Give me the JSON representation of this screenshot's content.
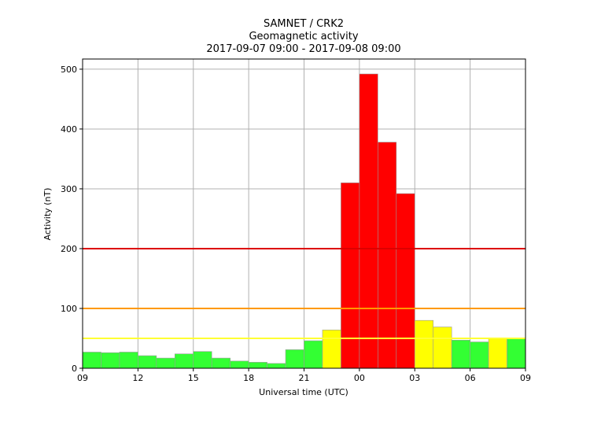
{
  "chart_data": {
    "type": "bar",
    "title": [
      "SAMNET / CRK2",
      "Geomagnetic activity",
      "2017-09-07 09:00 - 2017-09-08 09:00"
    ],
    "xlabel": "Universal time (UTC)",
    "ylabel": "Activity (nT)",
    "xlim": [
      0,
      24
    ],
    "ylim": [
      0,
      517
    ],
    "x_ticks": [
      0,
      3,
      6,
      9,
      12,
      15,
      18,
      21,
      24
    ],
    "x_tick_labels": [
      "09",
      "12",
      "15",
      "18",
      "21",
      "00",
      "03",
      "06",
      "09"
    ],
    "y_ticks": [
      0,
      100,
      200,
      300,
      400,
      500
    ],
    "y_tick_labels": [
      "0",
      "100",
      "200",
      "300",
      "400",
      "500"
    ],
    "grid": true,
    "bar_start_hours": [
      0,
      1,
      2,
      3,
      4,
      5,
      6,
      7,
      8,
      9,
      10,
      11,
      12,
      13,
      14,
      15,
      16,
      17,
      18,
      19,
      20,
      21,
      22,
      23
    ],
    "values": [
      27,
      26,
      27,
      21,
      17,
      24,
      28,
      17,
      12,
      10,
      8,
      31,
      46,
      64,
      310,
      492,
      378,
      292,
      80,
      69,
      47,
      44,
      49,
      49
    ],
    "bar_colors": [
      "#33ff33",
      "#33ff33",
      "#33ff33",
      "#33ff33",
      "#33ff33",
      "#33ff33",
      "#33ff33",
      "#33ff33",
      "#33ff33",
      "#33ff33",
      "#33ff33",
      "#33ff33",
      "#33ff33",
      "#ffff00",
      "#ff0000",
      "#ff0000",
      "#ff0000",
      "#ff0000",
      "#ffff00",
      "#ffff00",
      "#33ff33",
      "#33ff33",
      "#ffff00",
      "#33ff33"
    ],
    "thresholds": [
      {
        "value": 50,
        "color": "#ffff33"
      },
      {
        "value": 100,
        "color": "#ff9900"
      },
      {
        "value": 200,
        "color": "#dd0000"
      }
    ]
  }
}
